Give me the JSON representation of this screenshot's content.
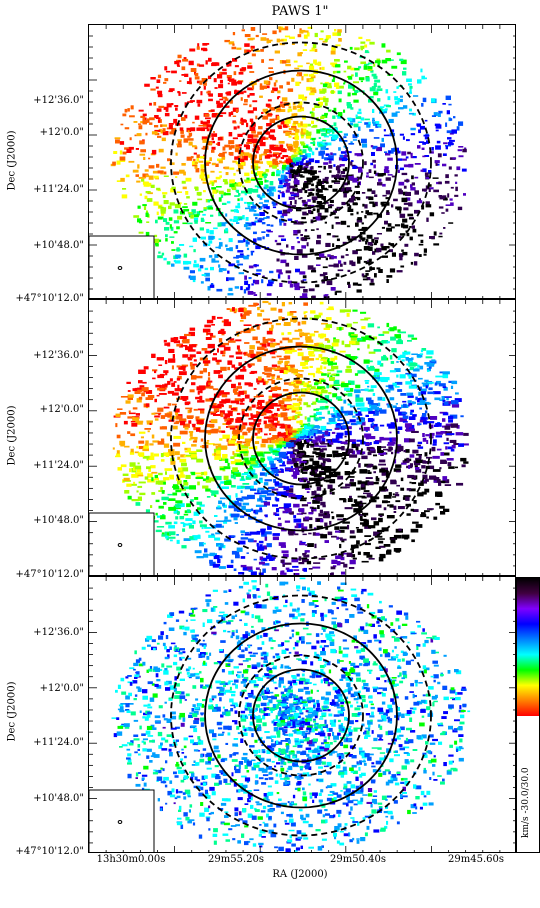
{
  "figure": {
    "title": "PAWS 1\"",
    "xlabel": "RA (J2000)",
    "ylabel": "Dec (J2000)",
    "x_ticks": [
      "13h30m0.00s",
      "29m55.20s",
      "29m50.40s",
      "29m45.60s"
    ],
    "y_ticks": [
      "+12'36.0\"",
      "+12'0.0\"",
      "+11'24.0\"",
      "+10'48.0\"",
      "+47°10'12.0\""
    ]
  },
  "colorbar": {
    "label": "km/s -30.0/30.0",
    "stops": [
      "#ff0000",
      "#ff8000",
      "#ffff00",
      "#00ff00",
      "#00ffff",
      "#0080ff",
      "#0000ff",
      "#8000ff",
      "#400040",
      "#000000"
    ]
  },
  "chart_data": [
    {
      "type": "image",
      "panel": "top",
      "title": "PAWS 1\"",
      "xlabel": "",
      "ylabel": "Dec (J2000)",
      "x_ticks": [
        "13h30m0.00s",
        "29m55.20s",
        "29m50.40s",
        "29m45.60s"
      ],
      "y_ticks": [
        "+12'36.0\"",
        "+12'0.0\"",
        "+11'24.0\"",
        "+10'48.0\"",
        "+47°10'12.0\""
      ],
      "colorbar_range": [
        -30.0,
        30.0
      ],
      "colorbar_unit": "km/s",
      "ellipses": {
        "solid": 2,
        "dashed": 2
      },
      "beam_inset": true
    },
    {
      "type": "image",
      "panel": "middle",
      "title": "",
      "xlabel": "",
      "ylabel": "Dec (J2000)",
      "x_ticks": [
        "13h30m0.00s",
        "29m55.20s",
        "29m50.40s",
        "29m45.60s"
      ],
      "y_ticks": [
        "+12'36.0\"",
        "+12'0.0\"",
        "+11'24.0\"",
        "+10'48.0\"",
        "+47°10'12.0\""
      ],
      "colorbar_range": [
        -30.0,
        30.0
      ],
      "colorbar_unit": "km/s",
      "ellipses": {
        "solid": 2,
        "dashed": 2
      },
      "beam_inset": true
    },
    {
      "type": "image",
      "panel": "bottom",
      "title": "",
      "xlabel": "RA (J2000)",
      "ylabel": "Dec (J2000)",
      "x_ticks": [
        "13h30m0.00s",
        "29m55.20s",
        "29m50.40s",
        "29m45.60s"
      ],
      "y_ticks": [
        "+12'36.0\"",
        "+12'0.0\"",
        "+11'24.0\"",
        "+10'48.0\"",
        "+47°10'12.0\""
      ],
      "colorbar_range": [
        -30.0,
        30.0
      ],
      "colorbar_unit": "km/s",
      "ellipses": {
        "solid": 2,
        "dashed": 2
      },
      "beam_inset": true
    }
  ]
}
